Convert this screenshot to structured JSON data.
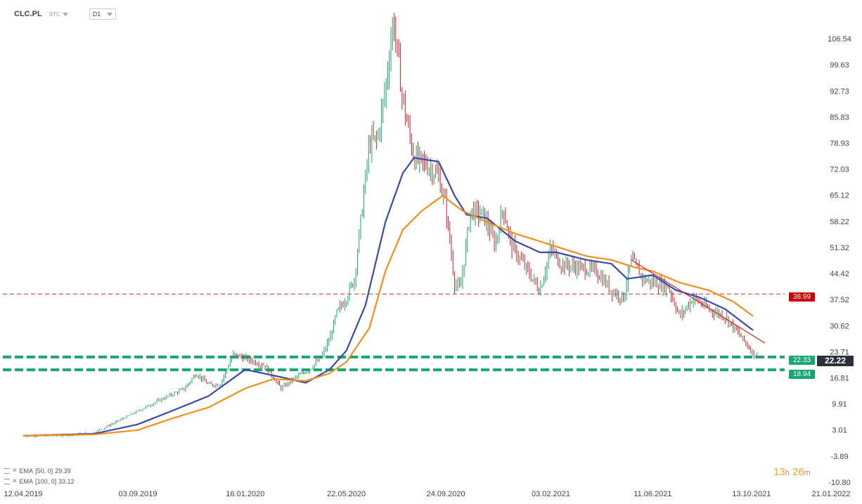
{
  "header": {
    "symbol": "CLC.PL",
    "source": "STC",
    "timeframe": "D1"
  },
  "legend": [
    {
      "label": "EMA",
      "params": "[50, 0]",
      "value": "29.39",
      "color": "#3a4aa8"
    },
    {
      "label": "EMA",
      "params": "[100, 0]",
      "value": "33.12",
      "color": "#f0901e"
    }
  ],
  "timer": {
    "hours": "13",
    "h_unit": "h",
    "minutes": "26",
    "m_unit": "m"
  },
  "tags": {
    "resistance": {
      "value": "38.99",
      "color": "#cc0000"
    },
    "support_upper": {
      "value": "22.33",
      "color": "#16a870"
    },
    "support_lower": {
      "value": "18.94",
      "color": "#16a870"
    },
    "current": {
      "value": "22.22"
    }
  },
  "chart_data": {
    "type": "line",
    "y_ticks": [
      "106.54",
      "99.63",
      "92.73",
      "85.83",
      "78.93",
      "72.03",
      "65.12",
      "58.22",
      "51.32",
      "44.42",
      "37.52",
      "30.62",
      "23.71",
      "16.81",
      "9.91",
      "3.01",
      "-3.89",
      "-10.80"
    ],
    "x_ticks": [
      "12.04.2019",
      "03.09.2019",
      "16.01.2020",
      "22.05.2020",
      "24.09.2020",
      "03.02.2021",
      "11.06.2021",
      "13.10.2021",
      "21.01.2022"
    ],
    "ylim": [
      -10.8,
      113.5
    ],
    "price_path": [
      [
        "2019-04-12",
        1.5
      ],
      [
        "2019-06-01",
        1.6
      ],
      [
        "2019-07-10",
        2.3
      ],
      [
        "2019-08-10",
        5.5
      ],
      [
        "2019-09-03",
        8
      ],
      [
        "2019-10-01",
        11
      ],
      [
        "2019-11-01",
        14
      ],
      [
        "2019-11-15",
        18
      ],
      [
        "2019-12-01",
        15
      ],
      [
        "2019-12-15",
        15
      ],
      [
        "2020-01-01",
        23
      ],
      [
        "2020-01-16",
        22
      ],
      [
        "2020-02-10",
        20
      ],
      [
        "2020-03-01",
        14
      ],
      [
        "2020-03-20",
        17
      ],
      [
        "2020-04-05",
        19
      ],
      [
        "2020-04-20",
        22
      ],
      [
        "2020-05-01",
        27
      ],
      [
        "2020-05-10",
        34
      ],
      [
        "2020-05-22",
        38
      ],
      [
        "2020-06-01",
        43
      ],
      [
        "2020-06-10",
        60
      ],
      [
        "2020-06-20",
        79
      ],
      [
        "2020-06-30",
        80
      ],
      [
        "2020-07-10",
        93
      ],
      [
        "2020-07-20",
        112
      ],
      [
        "2020-08-01",
        90
      ],
      [
        "2020-08-15",
        75
      ],
      [
        "2020-09-01",
        73
      ],
      [
        "2020-09-15",
        70
      ],
      [
        "2020-09-24",
        62
      ],
      [
        "2020-10-05",
        42
      ],
      [
        "2020-10-12",
        40
      ],
      [
        "2020-10-25",
        61
      ],
      [
        "2020-11-10",
        60
      ],
      [
        "2020-11-25",
        52
      ],
      [
        "2020-12-05",
        62
      ],
      [
        "2020-12-15",
        52
      ],
      [
        "2021-01-05",
        45
      ],
      [
        "2021-01-20",
        40
      ],
      [
        "2021-02-03",
        51
      ],
      [
        "2021-02-15",
        47
      ],
      [
        "2021-03-10",
        46
      ],
      [
        "2021-04-01",
        45
      ],
      [
        "2021-04-20",
        40
      ],
      [
        "2021-05-05",
        38
      ],
      [
        "2021-05-15",
        48
      ],
      [
        "2021-05-30",
        43
      ],
      [
        "2021-06-11",
        42
      ],
      [
        "2021-06-30",
        41
      ],
      [
        "2021-07-15",
        33
      ],
      [
        "2021-08-01",
        38
      ],
      [
        "2021-08-20",
        35
      ],
      [
        "2021-09-10",
        33
      ],
      [
        "2021-09-25",
        29
      ],
      [
        "2021-10-13",
        24
      ],
      [
        "2021-10-20",
        22.2
      ]
    ],
    "series": [
      {
        "name": "EMA [50, 0]",
        "color": "#3a4aa8",
        "points": [
          [
            "2019-04-12",
            1.5
          ],
          [
            "2019-07-10",
            2.0
          ],
          [
            "2019-09-03",
            4.5
          ],
          [
            "2019-10-15",
            8
          ],
          [
            "2019-12-01",
            12
          ],
          [
            "2020-01-16",
            19
          ],
          [
            "2020-03-01",
            17
          ],
          [
            "2020-04-01",
            15.5
          ],
          [
            "2020-05-01",
            19
          ],
          [
            "2020-05-22",
            24
          ],
          [
            "2020-06-15",
            36
          ],
          [
            "2020-07-10",
            58
          ],
          [
            "2020-08-01",
            71
          ],
          [
            "2020-08-15",
            75
          ],
          [
            "2020-09-15",
            74
          ],
          [
            "2020-10-05",
            65
          ],
          [
            "2020-10-20",
            60
          ],
          [
            "2020-11-15",
            59
          ],
          [
            "2020-12-20",
            53
          ],
          [
            "2021-01-20",
            50
          ],
          [
            "2021-02-10",
            50
          ],
          [
            "2021-03-20",
            48
          ],
          [
            "2021-04-20",
            47
          ],
          [
            "2021-05-10",
            43
          ],
          [
            "2021-06-11",
            44
          ],
          [
            "2021-07-10",
            40
          ],
          [
            "2021-08-10",
            38
          ],
          [
            "2021-09-10",
            35
          ],
          [
            "2021-10-15",
            29.39
          ]
        ]
      },
      {
        "name": "EMA [100, 0]",
        "color": "#f0901e",
        "points": [
          [
            "2019-04-12",
            1.5
          ],
          [
            "2019-07-10",
            1.8
          ],
          [
            "2019-09-03",
            3
          ],
          [
            "2019-10-15",
            6
          ],
          [
            "2019-12-01",
            9
          ],
          [
            "2020-01-16",
            14
          ],
          [
            "2020-02-20",
            16.5
          ],
          [
            "2020-04-01",
            16
          ],
          [
            "2020-05-01",
            18
          ],
          [
            "2020-05-22",
            21
          ],
          [
            "2020-06-20",
            30
          ],
          [
            "2020-07-10",
            45
          ],
          [
            "2020-08-01",
            56
          ],
          [
            "2020-08-25",
            61
          ],
          [
            "2020-09-20",
            65
          ],
          [
            "2020-10-15",
            61
          ],
          [
            "2020-11-15",
            58
          ],
          [
            "2020-12-20",
            55
          ],
          [
            "2021-02-03",
            52
          ],
          [
            "2021-03-20",
            49
          ],
          [
            "2021-04-20",
            48
          ],
          [
            "2021-05-20",
            46
          ],
          [
            "2021-06-11",
            45
          ],
          [
            "2021-07-15",
            42
          ],
          [
            "2021-08-20",
            40
          ],
          [
            "2021-09-20",
            37
          ],
          [
            "2021-10-15",
            33.12
          ]
        ]
      }
    ],
    "horizontal_lines": [
      {
        "value": 38.99,
        "style": "dashed",
        "color": "#cc3333"
      },
      {
        "value": 22.33,
        "style": "dashed-thick",
        "color": "#16a870"
      },
      {
        "value": 18.94,
        "style": "dashed-thick",
        "color": "#16a870"
      }
    ],
    "trendline": {
      "color": "#cc2222",
      "from": [
        "2021-05-15",
        48
      ],
      "to": [
        "2021-10-30",
        26
      ]
    },
    "grid": false
  }
}
